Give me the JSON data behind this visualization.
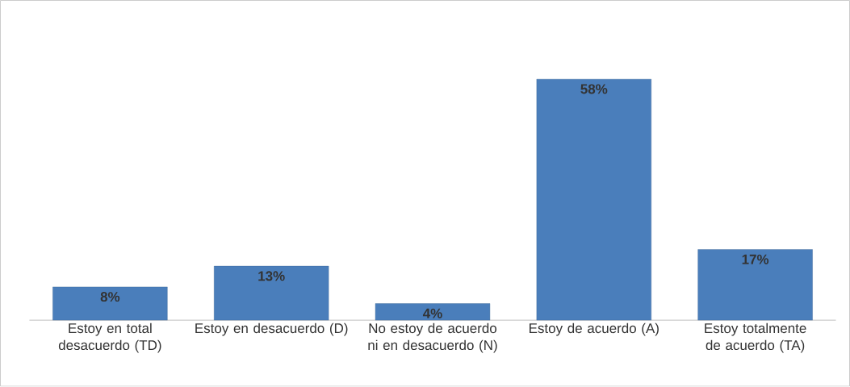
{
  "chart_data": {
    "type": "bar",
    "categories": [
      "Estoy en total desacuerdo (TD)",
      "Estoy en desacuerdo (D)",
      "No estoy de acuerdo ni en desacuerdo (N)",
      "Estoy de acuerdo (A)",
      "Estoy totalmente de acuerdo (TA)"
    ],
    "values": [
      8,
      13,
      4,
      58,
      17
    ],
    "value_labels": [
      "8%",
      "13%",
      "4%",
      "58%",
      "17%"
    ],
    "color": "#4a7ebb"
  }
}
